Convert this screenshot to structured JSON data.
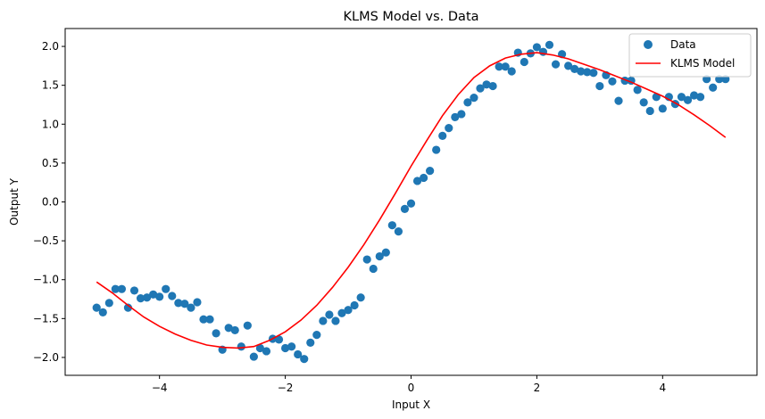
{
  "chart_data": {
    "type": "scatter",
    "title": "KLMS Model vs. Data",
    "xlabel": "Input X",
    "ylabel": "Output Y",
    "xlim": [
      -5.5,
      5.5
    ],
    "ylim": [
      -2.23,
      2.23
    ],
    "xticks": [
      -4,
      -2,
      0,
      2,
      4
    ],
    "xtick_labels": [
      "−4",
      "−2",
      "0",
      "2",
      "4"
    ],
    "yticks": [
      -2.0,
      -1.5,
      -1.0,
      -0.5,
      0.0,
      0.5,
      1.0,
      1.5,
      2.0
    ],
    "ytick_labels": [
      "−2.0",
      "−1.5",
      "−1.0",
      "−0.5",
      "0.0",
      "0.5",
      "1.0",
      "1.5",
      "2.0"
    ],
    "grid": false,
    "legend_position": "top-right",
    "series": [
      {
        "name": "Data",
        "kind": "scatter",
        "color": "#1f77b4",
        "x": [
          -5.0,
          -4.9,
          -4.8,
          -4.7,
          -4.6,
          -4.5,
          -4.4,
          -4.3,
          -4.2,
          -4.1,
          -4.0,
          -3.9,
          -3.8,
          -3.7,
          -3.6,
          -3.5,
          -3.4,
          -3.3,
          -3.2,
          -3.1,
          -3.0,
          -2.9,
          -2.8,
          -2.7,
          -2.6,
          -2.5,
          -2.4,
          -2.3,
          -2.2,
          -2.1,
          -2.0,
          -1.9,
          -1.8,
          -1.7,
          -1.6,
          -1.5,
          -1.4,
          -1.3,
          -1.2,
          -1.1,
          -1.0,
          -0.9,
          -0.8,
          -0.7,
          -0.6,
          -0.5,
          -0.4,
          -0.3,
          -0.2,
          -0.1,
          0.0,
          0.1,
          0.2,
          0.3,
          0.4,
          0.5,
          0.6,
          0.7,
          0.8,
          0.9,
          1.0,
          1.1,
          1.2,
          1.3,
          1.4,
          1.5,
          1.6,
          1.7,
          1.8,
          1.9,
          2.0,
          2.1,
          2.2,
          2.3,
          2.4,
          2.5,
          2.6,
          2.7,
          2.8,
          2.9,
          3.0,
          3.1,
          3.2,
          3.3,
          3.4,
          3.5,
          3.6,
          3.7,
          3.8,
          3.9,
          4.0,
          4.1,
          4.2,
          4.3,
          4.4,
          4.5,
          4.6,
          4.7,
          4.8,
          4.9,
          5.0
        ],
        "y": [
          -1.36,
          -1.42,
          -1.3,
          -1.12,
          -1.12,
          -1.36,
          -1.14,
          -1.24,
          -1.23,
          -1.19,
          -1.22,
          -1.12,
          -1.21,
          -1.3,
          -1.31,
          -1.36,
          -1.29,
          -1.51,
          -1.51,
          -1.69,
          -1.9,
          -1.62,
          -1.65,
          -1.86,
          -1.59,
          -1.99,
          -1.88,
          -1.92,
          -1.76,
          -1.77,
          -1.88,
          -1.86,
          -1.96,
          -2.02,
          -1.81,
          -1.71,
          -1.53,
          -1.45,
          -1.53,
          -1.43,
          -1.39,
          -1.33,
          -1.23,
          -0.74,
          -0.86,
          -0.7,
          -0.65,
          -0.3,
          -0.38,
          -0.09,
          -0.02,
          0.27,
          0.31,
          0.4,
          0.67,
          0.85,
          0.95,
          1.09,
          1.13,
          1.28,
          1.34,
          1.46,
          1.51,
          1.49,
          1.74,
          1.74,
          1.68,
          1.92,
          1.8,
          1.91,
          1.99,
          1.93,
          2.02,
          1.77,
          1.9,
          1.75,
          1.71,
          1.68,
          1.67,
          1.66,
          1.49,
          1.63,
          1.55,
          1.3,
          1.56,
          1.56,
          1.44,
          1.28,
          1.17,
          1.35,
          1.2,
          1.35,
          1.26,
          1.35,
          1.31,
          1.37,
          1.35,
          1.58,
          1.47,
          1.58,
          1.58
        ]
      },
      {
        "name": "KLMS Model",
        "kind": "line",
        "color": "#ff0000",
        "x": [
          -5.0,
          -4.75,
          -4.5,
          -4.25,
          -4.0,
          -3.75,
          -3.5,
          -3.25,
          -3.0,
          -2.75,
          -2.5,
          -2.25,
          -2.0,
          -1.75,
          -1.5,
          -1.25,
          -1.0,
          -0.75,
          -0.5,
          -0.25,
          0.0,
          0.25,
          0.5,
          0.75,
          1.0,
          1.25,
          1.5,
          1.75,
          2.0,
          2.25,
          2.5,
          2.75,
          3.0,
          3.25,
          3.5,
          3.75,
          4.0,
          4.25,
          4.5,
          4.75,
          5.0
        ],
        "y": [
          -1.03,
          -1.17,
          -1.33,
          -1.48,
          -1.6,
          -1.7,
          -1.78,
          -1.84,
          -1.87,
          -1.88,
          -1.86,
          -1.78,
          -1.67,
          -1.52,
          -1.33,
          -1.1,
          -0.84,
          -0.55,
          -0.23,
          0.11,
          0.46,
          0.79,
          1.11,
          1.38,
          1.6,
          1.75,
          1.85,
          1.9,
          1.92,
          1.89,
          1.84,
          1.77,
          1.7,
          1.62,
          1.54,
          1.45,
          1.36,
          1.25,
          1.12,
          0.98,
          0.83
        ]
      }
    ]
  }
}
